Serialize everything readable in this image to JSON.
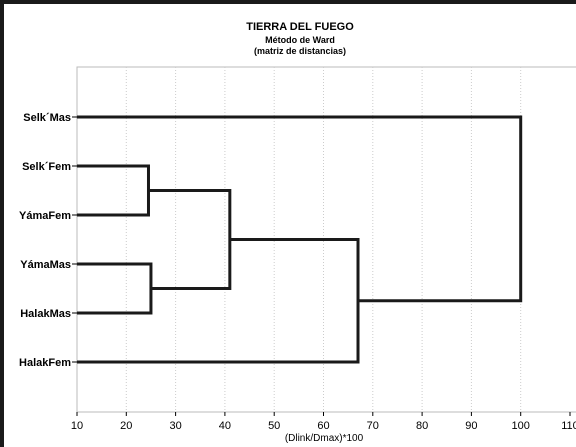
{
  "chart_data": {
    "type": "dendrogram",
    "title": "TIERRA DEL FUEGO",
    "subtitle": "Método de Ward",
    "subtitle2": "(matriz de distancias)",
    "xlabel": "(Dlink/Dmax)*100",
    "xlim": [
      10,
      110
    ],
    "xticks": [
      10,
      20,
      30,
      40,
      50,
      60,
      70,
      80,
      90,
      100,
      110
    ],
    "grid": true,
    "leaves": [
      "Selk´Mas",
      "Selk´Fem",
      "YámaFem",
      "YámaMas",
      "HalakMas",
      "HalakFem"
    ],
    "merges": [
      {
        "a": "Selk´Fem",
        "b": "YámaFem",
        "height": 24.5
      },
      {
        "a": "YámaMas",
        "b": "HalakMas",
        "height": 25
      },
      {
        "a": "Selk´Fem + YámaFem",
        "b": "YámaMas + HalakMas",
        "height": 41
      },
      {
        "a": "Selk´Fem + YámaFem + YámaMas + HalakMas",
        "b": "HalakFem",
        "height": 67
      },
      {
        "a": "Selk´Mas",
        "b": "Selk´Fem + YámaFem + YámaMas + HalakMas + HalakFem",
        "height": 100
      }
    ]
  }
}
